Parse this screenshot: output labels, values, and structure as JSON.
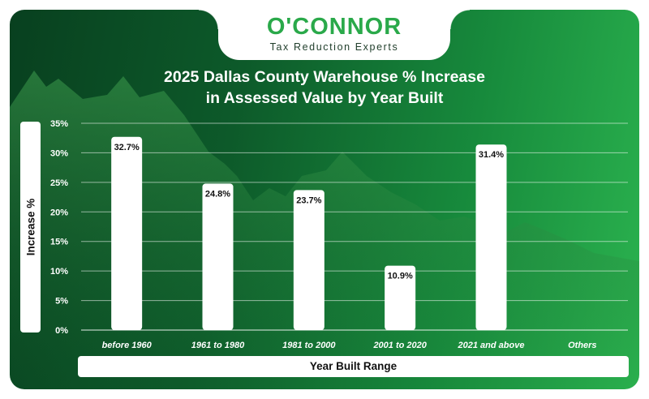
{
  "logo": {
    "brand": "O'CONNOR",
    "tagline": "Tax Reduction Experts"
  },
  "colors": {
    "bar": "#ffffff",
    "grid": "#ffffff",
    "brand": "#2aa94a"
  },
  "chart_data": {
    "type": "bar",
    "title_line1": "2025 Dallas County Warehouse % Increase",
    "title_line2": "in Assessed Value by Year Built",
    "xlabel": "Year Built Range",
    "ylabel": "Increase %",
    "categories": [
      "before 1960",
      "1961 to 1980",
      "1981 to 2000",
      "2001 to 2020",
      "2021 and above",
      "Others"
    ],
    "values": [
      32.7,
      24.8,
      23.7,
      10.9,
      31.4,
      null
    ],
    "value_labels": [
      "32.7%",
      "24.8%",
      "23.7%",
      "10.9%",
      "31.4%",
      ""
    ],
    "ylim": [
      0,
      35
    ],
    "yticks": [
      0,
      5,
      10,
      15,
      20,
      25,
      30,
      35
    ],
    "ytick_labels": [
      "0%",
      "5%",
      "10%",
      "15%",
      "20%",
      "25%",
      "30%",
      "35%"
    ],
    "grid": true,
    "legend": "none"
  }
}
